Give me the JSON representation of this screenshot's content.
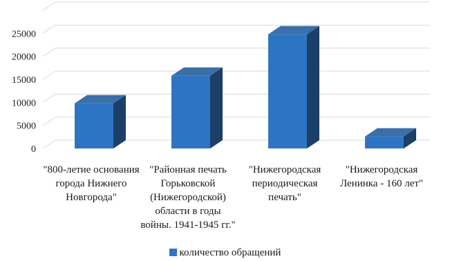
{
  "chart_data": {
    "type": "bar",
    "categories": [
      "\"800-летие основания города Нижнего Новгорода\"",
      "\"Районная печать Горьковской (Нижегородской) области в годы войны. 1941-1945 гг.\"",
      "\"Нижегородская периодическая печать\"",
      "\"Нижегородская Ленинка - 160 лет\""
    ],
    "series": [
      {
        "name": "количество обращений",
        "values": [
          9800,
          15800,
          24800,
          2600
        ]
      }
    ],
    "ylim": [
      0,
      30000
    ],
    "yticks": [
      "0",
      "5000",
      "10000",
      "15000",
      "20000",
      "25000"
    ],
    "ytick_values": [
      0,
      5000,
      10000,
      15000,
      20000,
      25000
    ],
    "grid": true,
    "legend": "bottom",
    "colors": {
      "bar_front": "#2E74C4",
      "bar_side": "#1B3F66",
      "bar_top": "#3A6FA8"
    }
  }
}
